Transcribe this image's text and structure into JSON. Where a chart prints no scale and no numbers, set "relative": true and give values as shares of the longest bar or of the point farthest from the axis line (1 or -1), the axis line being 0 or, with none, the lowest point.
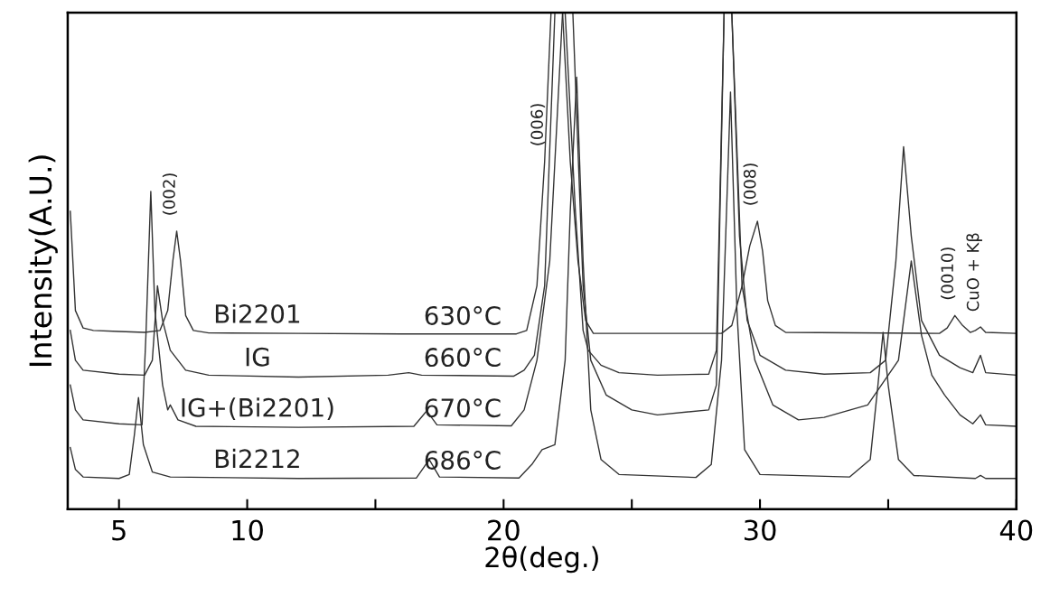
{
  "chart_data": {
    "type": "line",
    "relative": true,
    "xlabel": "2θ(deg.)",
    "ylabel": "Intensity(A.U.)",
    "xlim": [
      3,
      40
    ],
    "xticks": [
      5,
      10,
      {
        "value": 15,
        "label": null
      },
      20,
      {
        "value": 25,
        "label": null
      },
      30,
      {
        "value": 35,
        "label": null
      },
      40
    ],
    "grid": false,
    "legend": false,
    "marker": "none",
    "line_style": "solid",
    "series": [
      {
        "name": "Bi2201",
        "color": "#333333",
        "x": [
          3.1,
          3.3,
          3.6,
          4,
          5,
          6,
          6.6,
          6.9,
          7.1,
          7.25,
          7.4,
          7.6,
          7.9,
          8.5,
          12,
          16,
          20.5,
          20.9,
          21.3,
          21.6,
          21.85,
          22.3,
          22.6,
          22.9,
          23.2,
          23.5,
          28.5,
          28.9,
          29.3,
          29.6,
          29.9,
          30.1,
          30.3,
          30.6,
          31,
          37,
          37.3,
          37.6,
          37.9,
          38.2,
          38.4,
          38.6,
          38.8,
          40
        ],
        "values": [
          0.6,
          0.4,
          0.365,
          0.36,
          0.358,
          0.356,
          0.36,
          0.4,
          0.5,
          0.56,
          0.5,
          0.39,
          0.36,
          0.355,
          0.354,
          0.353,
          0.353,
          0.36,
          0.45,
          0.7,
          1,
          1,
          0.7,
          0.5,
          0.38,
          0.354,
          0.354,
          0.37,
          0.45,
          0.53,
          0.58,
          0.52,
          0.42,
          0.37,
          0.356,
          0.354,
          0.365,
          0.39,
          0.37,
          0.356,
          0.36,
          0.367,
          0.356,
          0.354
        ]
      },
      {
        "name": "IG",
        "color": "#333333",
        "x": [
          3.1,
          3.3,
          3.6,
          5,
          6,
          6.3,
          6.5,
          6.7,
          7.0,
          7.3,
          7.6,
          8.5,
          12,
          15.5,
          16.3,
          16.8,
          20.4,
          20.8,
          21.2,
          21.6,
          22.0,
          22.4,
          22.8,
          23.1,
          23.3,
          23.8,
          24.5,
          26,
          28,
          28.3,
          28.6,
          28.9,
          29.2,
          29.5,
          30,
          31,
          32.5,
          34.3,
          34.9,
          35.3,
          35.6,
          35.9,
          36.3,
          37,
          37.8,
          38.3,
          38.6,
          38.8,
          40
        ],
        "values": [
          0.36,
          0.3,
          0.28,
          0.272,
          0.27,
          0.3,
          0.45,
          0.38,
          0.32,
          0.3,
          0.28,
          0.27,
          0.266,
          0.27,
          0.275,
          0.27,
          0.268,
          0.28,
          0.31,
          0.45,
          1,
          1,
          0.6,
          0.36,
          0.32,
          0.29,
          0.275,
          0.27,
          0.272,
          0.32,
          1,
          1,
          0.55,
          0.38,
          0.31,
          0.28,
          0.272,
          0.275,
          0.3,
          0.5,
          0.73,
          0.55,
          0.38,
          0.31,
          0.285,
          0.275,
          0.31,
          0.275,
          0.27
        ]
      },
      {
        "name": "IG+(Bi2201)",
        "color": "#333333",
        "x": [
          3.1,
          3.3,
          3.6,
          5,
          5.9,
          6.05,
          6.24,
          6.4,
          6.7,
          6.9,
          7.0,
          7.3,
          8,
          12,
          16.5,
          17.0,
          17.4,
          20.3,
          20.8,
          21.3,
          21.8,
          22.3,
          22.7,
          23.1,
          23.4,
          24,
          25,
          26,
          28,
          28.3,
          28.6,
          28.9,
          29.3,
          29.8,
          30.5,
          31.5,
          32.5,
          34.2,
          35.4,
          35.9,
          36.3,
          36.7,
          37.2,
          37.8,
          38.3,
          38.6,
          38.8,
          40
        ],
        "values": [
          0.25,
          0.2,
          0.18,
          0.172,
          0.17,
          0.35,
          0.64,
          0.4,
          0.25,
          0.2,
          0.21,
          0.18,
          0.167,
          0.165,
          0.167,
          0.198,
          0.17,
          0.168,
          0.2,
          0.3,
          0.5,
          1,
          1,
          0.45,
          0.3,
          0.23,
          0.2,
          0.19,
          0.2,
          0.25,
          1,
          1,
          0.45,
          0.3,
          0.21,
          0.18,
          0.185,
          0.21,
          0.3,
          0.5,
          0.35,
          0.27,
          0.23,
          0.19,
          0.172,
          0.19,
          0.17,
          0.167
        ]
      },
      {
        "name": "Bi2212",
        "color": "#333333",
        "x": [
          3.1,
          3.3,
          3.6,
          5,
          5.4,
          5.6,
          5.76,
          5.95,
          6.3,
          7,
          12,
          16.6,
          17.1,
          17.5,
          20.6,
          21.1,
          21.5,
          22.0,
          22.4,
          22.6,
          22.85,
          23.1,
          23.4,
          23.8,
          24.5,
          27.5,
          28.1,
          28.5,
          28.85,
          29.1,
          29.4,
          30,
          33.5,
          34.3,
          34.6,
          34.8,
          35.0,
          35.4,
          36,
          38.4,
          38.6,
          38.8,
          40
        ],
        "values": [
          0.124,
          0.08,
          0.065,
          0.062,
          0.07,
          0.15,
          0.225,
          0.13,
          0.075,
          0.065,
          0.062,
          0.063,
          0.1,
          0.065,
          0.063,
          0.09,
          0.12,
          0.13,
          0.3,
          0.6,
          0.87,
          0.5,
          0.2,
          0.1,
          0.07,
          0.064,
          0.09,
          0.3,
          0.84,
          0.4,
          0.12,
          0.07,
          0.065,
          0.1,
          0.25,
          0.356,
          0.25,
          0.1,
          0.068,
          0.062,
          0.068,
          0.062,
          0.062
        ]
      }
    ],
    "annotations": [
      {
        "text": "630°C",
        "x": 18.4,
        "y": 0.353
      },
      {
        "text": "660°C",
        "x": 18.4,
        "y": 0.269
      },
      {
        "text": "670°C",
        "x": 18.4,
        "y": 0.167
      },
      {
        "text": "686°C",
        "x": 18.4,
        "y": 0.062
      },
      {
        "text": "(002)",
        "x": 7.25,
        "y": 0.56
      },
      {
        "text": "(006)",
        "x": 21.6,
        "y": 0.7
      },
      {
        "text": "(008)",
        "x": 29.9,
        "y": 0.58
      },
      {
        "text": "(0010)",
        "x": 37.6,
        "y": 0.39
      },
      {
        "text": "CuO + Kβ",
        "x": 38.6,
        "y": 0.367
      }
    ]
  }
}
